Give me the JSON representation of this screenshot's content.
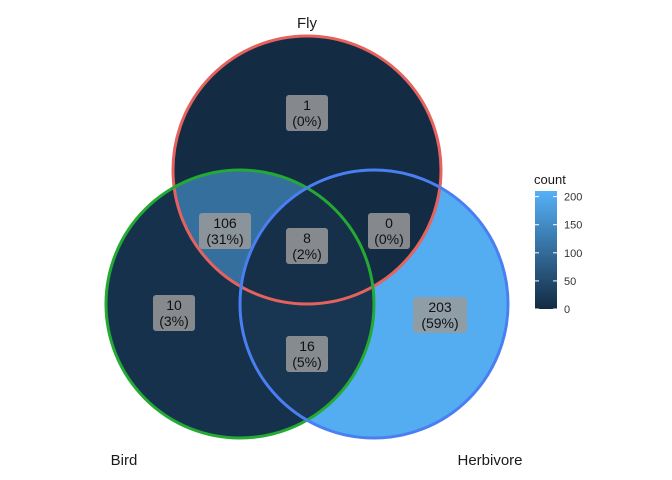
{
  "chart_data": {
    "type": "venn",
    "sets": [
      {
        "name": "Fly",
        "color": "#E5625E"
      },
      {
        "name": "Bird",
        "color": "#22AA33"
      },
      {
        "name": "Herbivore",
        "color": "#4A7FF2"
      }
    ],
    "regions": [
      {
        "sets": [
          "Fly"
        ],
        "count": "1",
        "percent": "(0%)"
      },
      {
        "sets": [
          "Fly",
          "Bird"
        ],
        "count": "106",
        "percent": "(31%)"
      },
      {
        "sets": [
          "Fly",
          "Bird",
          "Herbivore"
        ],
        "count": "8",
        "percent": "(2%)"
      },
      {
        "sets": [
          "Fly",
          "Herbivore"
        ],
        "count": "0",
        "percent": "(0%)"
      },
      {
        "sets": [
          "Bird"
        ],
        "count": "10",
        "percent": "(3%)"
      },
      {
        "sets": [
          "Bird",
          "Herbivore"
        ],
        "count": "16",
        "percent": "(5%)"
      },
      {
        "sets": [
          "Herbivore"
        ],
        "count": "203",
        "percent": "(59%)"
      }
    ],
    "legend": {
      "title": "count",
      "ticks": [
        "0",
        "50",
        "100",
        "150",
        "200"
      ],
      "range": [
        0,
        210
      ],
      "low_color": "#132B43",
      "high_color": "#56B1F7",
      "placement": "right"
    }
  }
}
